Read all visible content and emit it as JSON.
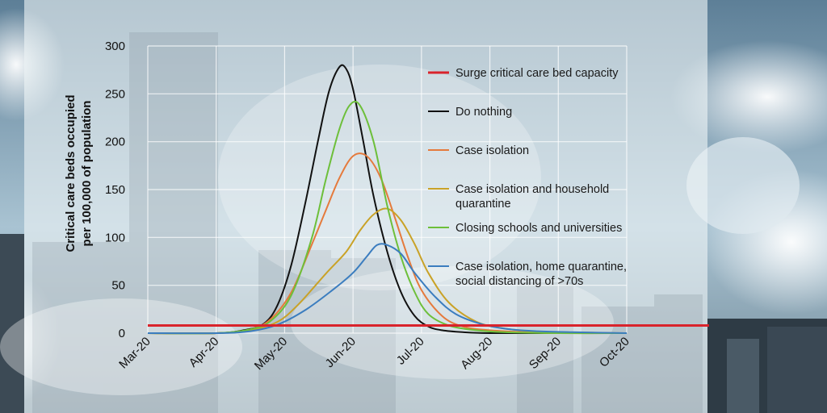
{
  "chart_data": {
    "type": "line",
    "ylabel": [
      "Critical care beds occupied",
      "per 100,000 of population"
    ],
    "xlabel": "",
    "ylim": [
      0,
      300
    ],
    "yticks": [
      0,
      50,
      100,
      150,
      200,
      250,
      300
    ],
    "xlim": [
      0,
      7
    ],
    "categories": [
      "Mar-20",
      "Apr-20",
      "May-20",
      "Jun-20",
      "Jul-20",
      "Aug-20",
      "Sep-20",
      "Oct-20"
    ],
    "grid": true,
    "capacity": {
      "name": "Surge critical care bed capacity",
      "value": 8,
      "color": "#d9232b"
    },
    "series": [
      {
        "name": "Do nothing",
        "color": "#111111",
        "label_lines": [
          "Do nothing"
        ],
        "x": [
          0,
          1,
          1.4,
          1.7,
          1.9,
          2.1,
          2.3,
          2.5,
          2.65,
          2.8,
          2.9,
          3.0,
          3.15,
          3.3,
          3.5,
          3.7,
          3.9,
          4.1,
          4.3,
          4.6,
          5,
          6,
          7
        ],
        "y": [
          0,
          0,
          3,
          10,
          30,
          72,
          135,
          205,
          253,
          278,
          276,
          255,
          200,
          143,
          85,
          43,
          18,
          7,
          3,
          1,
          0,
          0,
          0
        ]
      },
      {
        "name": "Case isolation",
        "color": "#e57a3c",
        "label_lines": [
          "Case isolation"
        ],
        "x": [
          0,
          1,
          1.5,
          1.8,
          2.1,
          2.4,
          2.6,
          2.8,
          3.0,
          3.2,
          3.4,
          3.6,
          3.8,
          4.0,
          4.3,
          4.6,
          5,
          5.5,
          6,
          7
        ],
        "y": [
          0,
          0,
          4,
          15,
          43,
          93,
          128,
          162,
          185,
          185,
          163,
          123,
          80,
          45,
          18,
          7,
          3,
          1,
          0,
          0
        ]
      },
      {
        "name": "Case isolation and household quarantine",
        "color": "#c9a227",
        "label_lines": [
          "Case isolation and household",
          "quarantine"
        ],
        "x": [
          0,
          1,
          1.5,
          1.9,
          2.2,
          2.6,
          2.9,
          3.1,
          3.3,
          3.5,
          3.7,
          3.9,
          4.1,
          4.4,
          4.8,
          5.2,
          5.6,
          6,
          7
        ],
        "y": [
          0,
          0,
          3,
          12,
          30,
          62,
          85,
          107,
          124,
          130,
          118,
          93,
          63,
          32,
          12,
          5,
          2,
          1,
          0
        ]
      },
      {
        "name": "Closing schools and universities",
        "color": "#6dbf3a",
        "label_lines": [
          "Closing schools and universities"
        ],
        "x": [
          0,
          1,
          1.5,
          1.8,
          2.1,
          2.4,
          2.6,
          2.8,
          2.95,
          3.1,
          3.3,
          3.5,
          3.7,
          3.9,
          4.1,
          4.4,
          4.8,
          5.2,
          6,
          7
        ],
        "y": [
          0,
          0,
          4,
          13,
          40,
          100,
          160,
          213,
          238,
          238,
          200,
          133,
          80,
          43,
          20,
          8,
          3,
          1,
          0,
          0
        ]
      },
      {
        "name": "Case isolation, home quarantine, social distancing of >70s",
        "color": "#3b7dbf",
        "label_lines": [
          "Case isolation, home quarantine,",
          "social distancing of >70s"
        ],
        "x": [
          0,
          1,
          1.5,
          1.9,
          2.3,
          2.7,
          3.0,
          3.2,
          3.35,
          3.5,
          3.7,
          3.9,
          4.2,
          4.5,
          4.9,
          5.3,
          5.7,
          6.2,
          7
        ],
        "y": [
          0,
          0,
          2,
          9,
          24,
          45,
          63,
          80,
          92,
          92,
          83,
          63,
          38,
          20,
          9,
          4,
          2,
          1,
          0
        ]
      }
    ]
  }
}
